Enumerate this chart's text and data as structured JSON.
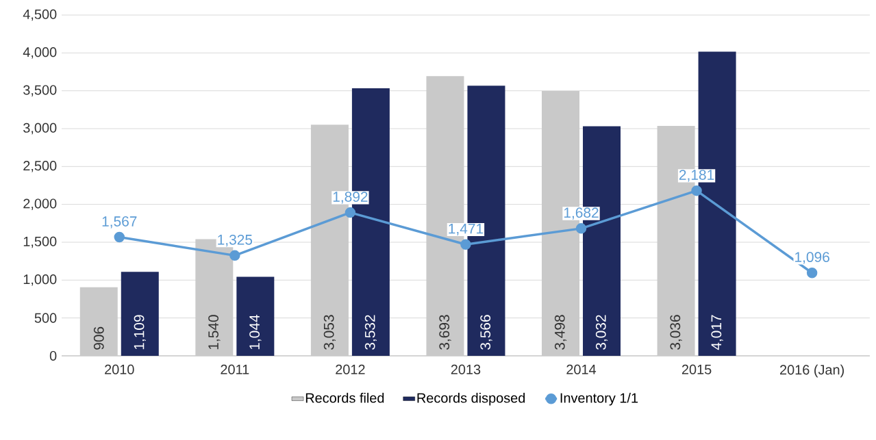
{
  "chart_data": {
    "type": "bar",
    "categories": [
      "2010",
      "2011",
      "2012",
      "2013",
      "2014",
      "2015",
      "2016 (Jan)"
    ],
    "series": [
      {
        "name": "Records filed",
        "color": "#c9c9c9",
        "values": [
          906,
          1540,
          3053,
          3693,
          3498,
          3036,
          null
        ],
        "value_labels": [
          "906",
          "1,540",
          "3,053",
          "3,693",
          "3,498",
          "3,036",
          null
        ]
      },
      {
        "name": "Records disposed",
        "color": "#1f2a5e",
        "values": [
          1109,
          1044,
          3532,
          3566,
          3032,
          4017,
          null
        ],
        "value_labels": [
          "1,109",
          "1,044",
          "3,532",
          "3,566",
          "3,032",
          "4,017",
          null
        ]
      },
      {
        "name": "Inventory 1/1",
        "type": "line",
        "color": "#5b9bd5",
        "marker": "circle",
        "values": [
          1567,
          1325,
          1892,
          1471,
          1682,
          2181,
          1096
        ],
        "value_labels": [
          "1,567",
          "1,325",
          "1,892",
          "1,471",
          "1,682",
          "2,181",
          "1,096"
        ]
      }
    ],
    "ylim": [
      0,
      4500
    ],
    "yticks": [
      0,
      500,
      {
        "value": 1000,
        "label": "1,000"
      },
      {
        "value": 1500,
        "label": "1,500"
      },
      {
        "value": 2000,
        "label": "2,000"
      },
      {
        "value": 2500,
        "label": "2,500"
      },
      {
        "value": 3000,
        "label": "3,000"
      },
      {
        "value": 3500,
        "label": "3,500"
      },
      {
        "value": 4000,
        "label": "4,000"
      },
      {
        "value": 4500,
        "label": "4,500"
      }
    ],
    "grid": "y",
    "legend": "bottom"
  }
}
